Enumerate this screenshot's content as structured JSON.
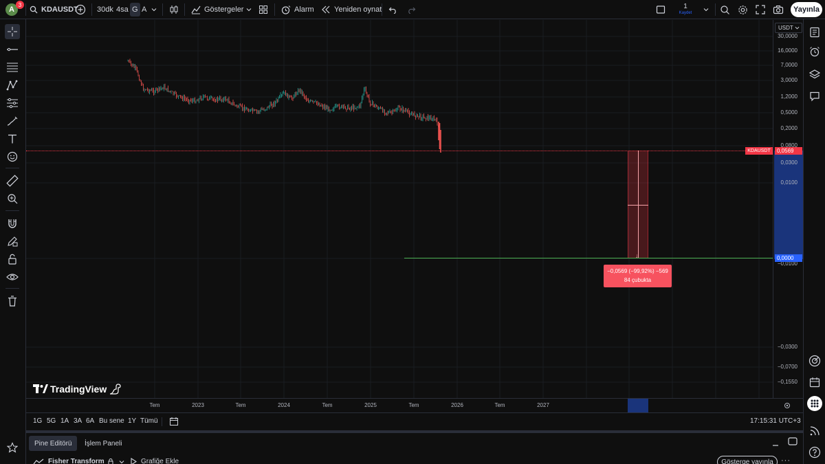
{
  "topbar": {
    "avatar_letter": "A",
    "notification_count": "3",
    "symbol": "KDAUSDT",
    "intervals": [
      "30dk",
      "4sa",
      "G",
      "A"
    ],
    "active_interval": "G",
    "indicators_label": "Göstergeler",
    "alarm_label": "Alarm",
    "replay_label": "Yeniden oynat",
    "layout_count": "1",
    "save_label": "Kaydet",
    "publish_label": "Yayınla"
  },
  "price_scale": {
    "currency": "USDT",
    "ticks": [
      "30,0000",
      "16,0000",
      "7,0000",
      "3,0000",
      "1,2000",
      "0,5000",
      "0,2000",
      "0,0800",
      "0,0300",
      "0,0100",
      "−0,0000",
      "−0,0100",
      "−0,0300",
      "−0,0700",
      "−0,1550"
    ],
    "symbol_tag": "KDAUSDT",
    "current_price": "0,0569",
    "target_price": "0,0000"
  },
  "time_axis": {
    "labels": [
      "Tem",
      "2023",
      "Tem",
      "2024",
      "Tem",
      "2025",
      "Tem",
      "2026",
      "Tem",
      "2027"
    ]
  },
  "measure_tooltip": {
    "line1": "−0,0569 (−99,92%) −569",
    "line2": "84 çubukta"
  },
  "logo_text": "TradingView",
  "range_bar": {
    "ranges": [
      "1G",
      "5G",
      "1A",
      "3A",
      "6A",
      "Bu sene",
      "1Y",
      "Tümü"
    ],
    "clock": "17:15:31 UTC+3"
  },
  "bottom_panel": {
    "tabs": [
      "Pine Editörü",
      "İşlem Paneli"
    ],
    "script_name": "Fisher Transform",
    "add_to_chart": "Grafiğe Ekle",
    "publish_indicator": "Gösterge yayınla"
  },
  "colors": {
    "background": "#0f0f0f",
    "up": "#26a69a",
    "down": "#ef5350",
    "accent_blue": "#2962ff",
    "target_line": "#4caf50",
    "tooltip_red": "#f7525f"
  }
}
